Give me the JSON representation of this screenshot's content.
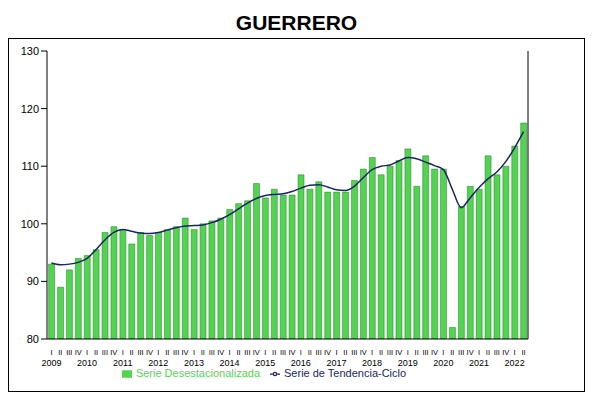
{
  "chart_data": {
    "type": "bar",
    "title": "GUERRERO",
    "categories": [
      "I",
      "II",
      "III",
      "IV",
      "I",
      "II",
      "III",
      "IV",
      "I",
      "II",
      "III",
      "IV",
      "I",
      "II",
      "III",
      "IV",
      "I",
      "II",
      "III",
      "IV",
      "I",
      "II",
      "III",
      "IV",
      "I",
      "II",
      "III",
      "IV",
      "I",
      "II",
      "III",
      "IV",
      "I",
      "II",
      "III",
      "IV",
      "I",
      "II",
      "III",
      "IV",
      "I",
      "II",
      "III",
      "IV",
      "I",
      "II",
      "III",
      "IV",
      "I",
      "II",
      "III",
      "IV",
      "I",
      "II"
    ],
    "category_groups": [
      "2009",
      null,
      null,
      null,
      "2010",
      null,
      null,
      null,
      "2011",
      null,
      null,
      null,
      "2012",
      null,
      null,
      null,
      "2013",
      null,
      null,
      null,
      "2014",
      null,
      null,
      null,
      "2015",
      null,
      null,
      null,
      "2016",
      null,
      null,
      null,
      "2017",
      null,
      null,
      null,
      "2018",
      null,
      null,
      null,
      "2019",
      null,
      null,
      null,
      "2020",
      null,
      null,
      null,
      "2021",
      null,
      null,
      null,
      "2022",
      null
    ],
    "series": [
      {
        "name": "Serie Desestacionalizada",
        "type": "bar",
        "color": "#52d452",
        "values": [
          93,
          89,
          92,
          94,
          94.5,
          95.5,
          98.5,
          99.5,
          99,
          96.5,
          98.5,
          98,
          98.5,
          99,
          99.5,
          101,
          99,
          100,
          100.5,
          101,
          102.5,
          103.5,
          104,
          107,
          104.5,
          106,
          105,
          105,
          108.5,
          106,
          107.3,
          105.5,
          105.5,
          105.5,
          107.5,
          109.5,
          111.5,
          108.5,
          110,
          111,
          113,
          106.5,
          111.8,
          109.5,
          109.5,
          82,
          103,
          106.5,
          106,
          111.8,
          108.5,
          110,
          113.5,
          117.5
        ]
      },
      {
        "name": "Serie de Tendencia-Ciclo",
        "type": "line",
        "color": "#1a2560",
        "values": [
          93.2,
          92.9,
          93,
          93.3,
          94,
          95.5,
          97.2,
          98.5,
          99,
          98.7,
          98.4,
          98.3,
          98.5,
          98.9,
          99.3,
          99.6,
          99.7,
          99.8,
          100.2,
          100.8,
          101.6,
          102.6,
          103.6,
          104.4,
          104.9,
          105.1,
          105.2,
          105.6,
          106.2,
          106.7,
          106.8,
          106.4,
          105.9,
          105.8,
          106.5,
          108,
          109.4,
          110,
          110.2,
          110.9,
          111.5,
          111.3,
          110.7,
          110.1,
          109.4,
          106,
          102.8,
          104.5,
          106.3,
          107.8,
          109,
          110.8,
          113.2,
          116
        ]
      }
    ],
    "ylim": [
      80,
      130
    ],
    "yticks": [
      80,
      90,
      100,
      110,
      120,
      130
    ],
    "grid": false,
    "legend": "bottom"
  }
}
